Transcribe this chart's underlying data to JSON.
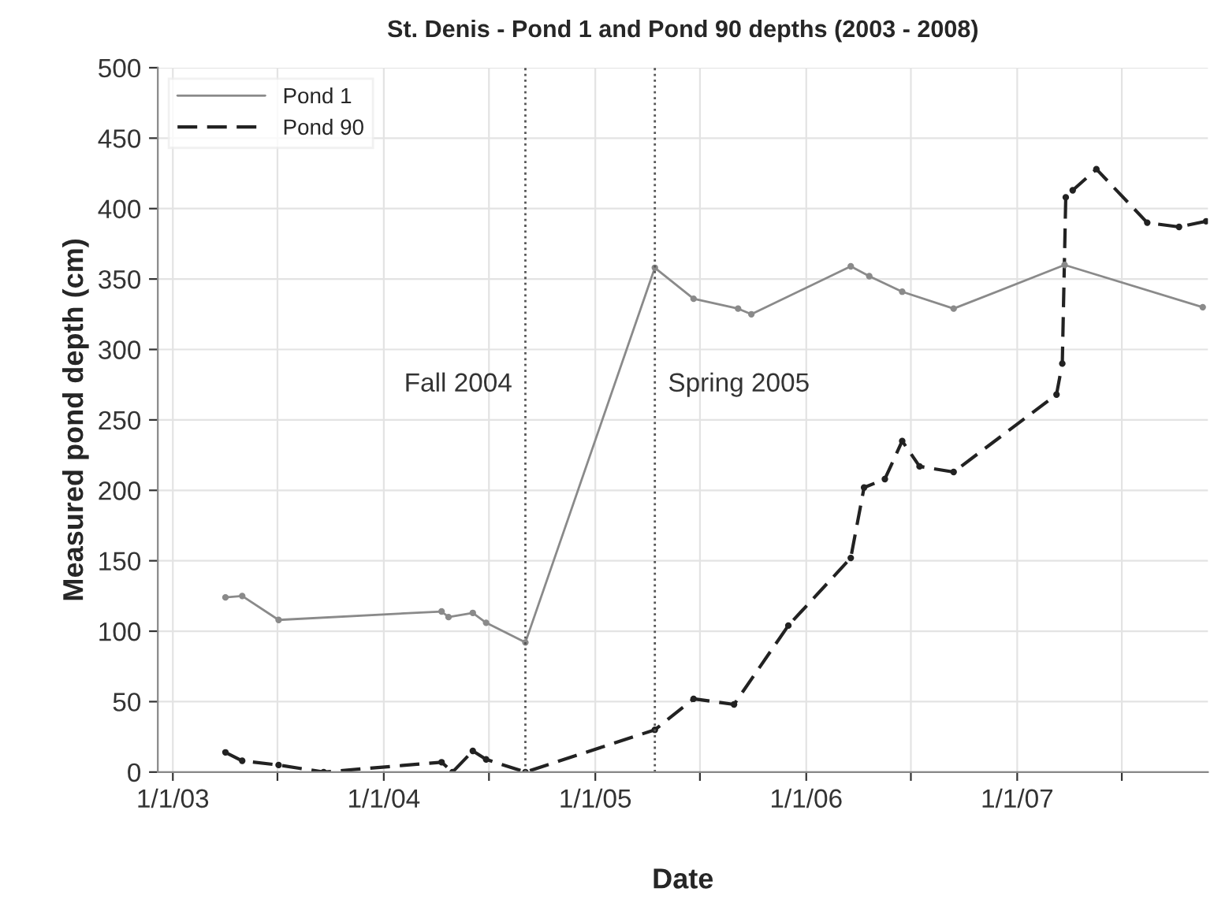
{
  "chart_data": {
    "type": "line",
    "title": "St. Denis - Pond 1 and Pond 90 depths (2003 - 2008)",
    "xlabel": "Date",
    "ylabel": "Measured pond depth (cm)",
    "series": [
      {
        "name": "Pond 1",
        "color": "#8a8a8a",
        "line_style": "solid",
        "x": [
          "2003-04-02",
          "2003-05-01",
          "2003-07-03",
          "2004-04-10",
          "2004-04-22",
          "2004-06-03",
          "2004-06-26",
          "2004-09-02",
          "2005-04-14",
          "2005-06-20",
          "2005-09-05",
          "2005-09-28",
          "2006-03-19",
          "2006-04-20",
          "2006-06-16",
          "2006-09-13",
          "2007-03-24",
          "2007-11-18"
        ],
        "values": [
          124,
          125,
          108,
          114,
          110,
          113,
          106,
          92,
          358,
          336,
          329,
          325,
          359,
          352,
          341,
          329,
          360,
          330
        ]
      },
      {
        "name": "Pond 90",
        "color": "#222222",
        "line_style": "dashed",
        "x": [
          "2003-04-02",
          "2003-05-01",
          "2003-07-03",
          "2003-09-19",
          "2004-04-10",
          "2004-04-29",
          "2004-06-03",
          "2004-06-26",
          "2004-09-02",
          "2005-04-14",
          "2005-06-20",
          "2005-08-29",
          "2005-12-01",
          "2006-03-19",
          "2006-04-11",
          "2006-05-17",
          "2006-06-16",
          "2006-07-16",
          "2006-09-13",
          "2007-03-10",
          "2007-03-20",
          "2007-03-26",
          "2007-04-07",
          "2007-05-18",
          "2007-08-14",
          "2007-10-08",
          "2007-11-24"
        ],
        "values": [
          14,
          8,
          5,
          0,
          7,
          0,
          15,
          9,
          0,
          30,
          52,
          48,
          104,
          152,
          202,
          208,
          235,
          217,
          213,
          268,
          290,
          408,
          413,
          428,
          390,
          387,
          391
        ]
      }
    ],
    "xlim": [
      "2002-12-06",
      "2007-11-27"
    ],
    "xticks": [
      {
        "value": "2003-01-01",
        "label": "1/1/03"
      },
      {
        "value": "2003-07-01",
        "label": null
      },
      {
        "value": "2004-01-01",
        "label": "1/1/04"
      },
      {
        "value": "2004-07-01",
        "label": null
      },
      {
        "value": "2005-01-01",
        "label": "1/1/05"
      },
      {
        "value": "2005-07-01",
        "label": null
      },
      {
        "value": "2006-01-01",
        "label": "1/1/06"
      },
      {
        "value": "2006-07-01",
        "label": null
      },
      {
        "value": "2007-01-01",
        "label": "1/1/07"
      },
      {
        "value": "2007-07-01",
        "label": null
      }
    ],
    "ylim": [
      0,
      500
    ],
    "yticks": [
      0,
      50,
      100,
      150,
      200,
      250,
      300,
      350,
      400,
      450,
      500
    ],
    "ref_lines": [
      {
        "axis": "x",
        "value": "2004-09-02",
        "label": "Fall 2004",
        "color": "#555555",
        "line_style": "dotted"
      },
      {
        "axis": "x",
        "value": "2005-04-14",
        "label": "Spring 2005",
        "color": "#555555",
        "line_style": "dotted"
      }
    ],
    "marker": "circle",
    "grid": true,
    "legend": "top left"
  }
}
